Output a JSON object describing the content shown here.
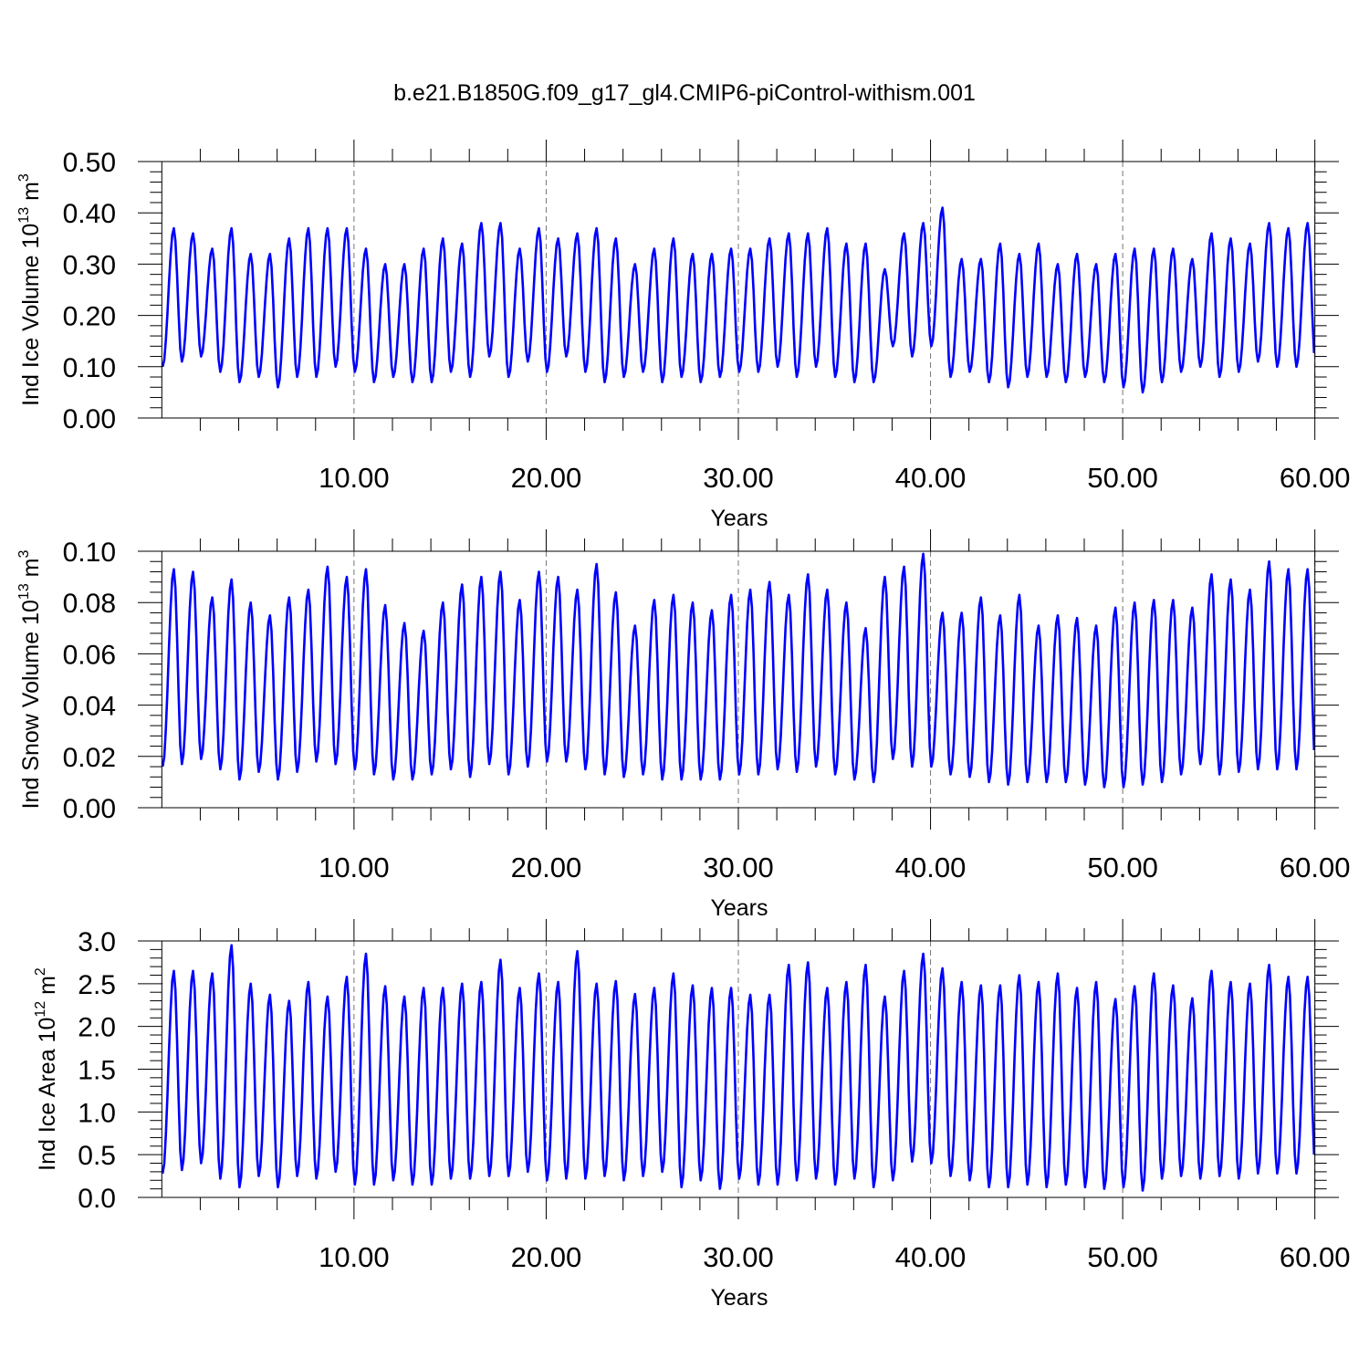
{
  "title": "b.e21.B1850G.f09_g17_gl4.CMIP6-piControl-withism.001",
  "colors": {
    "series": "#0000ff",
    "axes": "#000000",
    "grid": "#777777"
  },
  "chart_data": [
    {
      "type": "line",
      "xlabel": "Years",
      "ylabel": "Ind Ice Volume 10",
      "ylabel_sup": "13",
      "ylabel_unit": " m",
      "ylabel_unit_sup": "3",
      "xlim": [
        0,
        60
      ],
      "ylim": [
        0,
        0.5
      ],
      "xticks": [
        10,
        20,
        30,
        40,
        50,
        60
      ],
      "xtick_labels": [
        "10.00",
        "20.00",
        "30.00",
        "40.00",
        "50.00",
        "60.00"
      ],
      "yticks": [
        0,
        0.1,
        0.2,
        0.3,
        0.4,
        0.5
      ],
      "ytick_labels": [
        "0.00",
        "0.10",
        "0.20",
        "0.30",
        "0.40",
        "0.50"
      ],
      "grid": "dashed vertical at major x ticks",
      "series": [
        {
          "x_start": 0.042,
          "dx": 0.08333,
          "peaks": [
            0.37,
            0.36,
            0.33,
            0.37,
            0.32,
            0.32,
            0.35,
            0.37,
            0.37,
            0.37,
            0.33,
            0.3,
            0.3,
            0.33,
            0.35,
            0.34,
            0.38,
            0.38,
            0.33,
            0.37,
            0.35,
            0.36,
            0.37,
            0.35,
            0.3,
            0.33,
            0.35,
            0.32,
            0.32,
            0.33,
            0.33,
            0.35,
            0.36,
            0.36,
            0.37,
            0.34,
            0.34,
            0.29,
            0.36,
            0.38,
            0.41,
            0.31,
            0.31,
            0.34,
            0.32,
            0.34,
            0.3,
            0.32,
            0.3,
            0.32,
            0.33,
            0.33,
            0.33,
            0.31,
            0.36,
            0.35,
            0.34,
            0.38,
            0.37,
            0.38
          ],
          "troughs": [
            0.1,
            0.11,
            0.12,
            0.09,
            0.07,
            0.08,
            0.06,
            0.08,
            0.08,
            0.1,
            0.09,
            0.07,
            0.08,
            0.07,
            0.07,
            0.09,
            0.08,
            0.12,
            0.08,
            0.11,
            0.09,
            0.12,
            0.09,
            0.07,
            0.08,
            0.09,
            0.07,
            0.08,
            0.07,
            0.08,
            0.09,
            0.09,
            0.1,
            0.08,
            0.1,
            0.08,
            0.07,
            0.07,
            0.14,
            0.12,
            0.14,
            0.08,
            0.09,
            0.07,
            0.06,
            0.08,
            0.08,
            0.07,
            0.08,
            0.07,
            0.06,
            0.05,
            0.07,
            0.09,
            0.1,
            0.08,
            0.09,
            0.11,
            0.1,
            0.1
          ]
        }
      ]
    },
    {
      "type": "line",
      "xlabel": "Years",
      "ylabel": "Ind Snow Volume 10",
      "ylabel_sup": "13",
      "ylabel_unit": " m",
      "ylabel_unit_sup": "3",
      "xlim": [
        0,
        60
      ],
      "ylim": [
        0,
        0.1
      ],
      "xticks": [
        10,
        20,
        30,
        40,
        50,
        60
      ],
      "xtick_labels": [
        "10.00",
        "20.00",
        "30.00",
        "40.00",
        "50.00",
        "60.00"
      ],
      "yticks": [
        0,
        0.02,
        0.04,
        0.06,
        0.08,
        0.1
      ],
      "ytick_labels": [
        "0.00",
        "0.02",
        "0.04",
        "0.06",
        "0.08",
        "0.10"
      ],
      "grid": "dashed vertical at major x ticks",
      "series": [
        {
          "x_start": 0.042,
          "dx": 0.08333,
          "peaks": [
            0.093,
            0.092,
            0.082,
            0.089,
            0.08,
            0.075,
            0.082,
            0.085,
            0.094,
            0.09,
            0.093,
            0.079,
            0.072,
            0.069,
            0.08,
            0.087,
            0.09,
            0.092,
            0.081,
            0.092,
            0.09,
            0.085,
            0.095,
            0.084,
            0.071,
            0.081,
            0.083,
            0.08,
            0.077,
            0.083,
            0.085,
            0.088,
            0.083,
            0.091,
            0.085,
            0.08,
            0.07,
            0.09,
            0.094,
            0.099,
            0.076,
            0.076,
            0.082,
            0.075,
            0.083,
            0.071,
            0.075,
            0.074,
            0.071,
            0.078,
            0.08,
            0.081,
            0.081,
            0.078,
            0.091,
            0.089,
            0.085,
            0.096,
            0.093,
            0.093
          ],
          "troughs": [
            0.016,
            0.017,
            0.019,
            0.015,
            0.011,
            0.014,
            0.011,
            0.014,
            0.018,
            0.017,
            0.015,
            0.013,
            0.011,
            0.011,
            0.013,
            0.015,
            0.012,
            0.017,
            0.013,
            0.016,
            0.018,
            0.018,
            0.015,
            0.013,
            0.012,
            0.013,
            0.011,
            0.011,
            0.011,
            0.011,
            0.013,
            0.013,
            0.015,
            0.014,
            0.016,
            0.013,
            0.011,
            0.01,
            0.019,
            0.016,
            0.016,
            0.013,
            0.012,
            0.01,
            0.009,
            0.01,
            0.01,
            0.01,
            0.009,
            0.008,
            0.008,
            0.009,
            0.01,
            0.013,
            0.017,
            0.013,
            0.014,
            0.015,
            0.015,
            0.015
          ]
        }
      ]
    },
    {
      "type": "line",
      "xlabel": "Years",
      "ylabel": "Ind Ice Area 10",
      "ylabel_sup": "12",
      "ylabel_unit": " m",
      "ylabel_unit_sup": "2",
      "xlim": [
        0,
        60
      ],
      "ylim": [
        0,
        3.0
      ],
      "xticks": [
        10,
        20,
        30,
        40,
        50,
        60
      ],
      "xtick_labels": [
        "10.00",
        "20.00",
        "30.00",
        "40.00",
        "50.00",
        "60.00"
      ],
      "yticks": [
        0,
        0.5,
        1.0,
        1.5,
        2.0,
        2.5,
        3.0
      ],
      "ytick_labels": [
        "0.0",
        "0.5",
        "1.0",
        "1.5",
        "2.0",
        "2.5",
        "3.0"
      ],
      "grid": "dashed vertical at major x ticks",
      "series": [
        {
          "x_start": 0.042,
          "dx": 0.08333,
          "peaks": [
            2.65,
            2.65,
            2.62,
            2.95,
            2.5,
            2.37,
            2.3,
            2.52,
            2.35,
            2.58,
            2.85,
            2.47,
            2.35,
            2.45,
            2.45,
            2.5,
            2.52,
            2.78,
            2.45,
            2.62,
            2.52,
            2.88,
            2.5,
            2.53,
            2.38,
            2.45,
            2.62,
            2.48,
            2.45,
            2.45,
            2.37,
            2.37,
            2.72,
            2.75,
            2.45,
            2.52,
            2.72,
            2.35,
            2.65,
            2.85,
            2.68,
            2.52,
            2.48,
            2.48,
            2.6,
            2.52,
            2.62,
            2.45,
            2.52,
            2.32,
            2.47,
            2.62,
            2.48,
            2.33,
            2.65,
            2.52,
            2.5,
            2.72,
            2.58,
            2.58
          ],
          "troughs": [
            0.28,
            0.32,
            0.4,
            0.22,
            0.12,
            0.25,
            0.12,
            0.25,
            0.22,
            0.3,
            0.15,
            0.15,
            0.2,
            0.15,
            0.15,
            0.22,
            0.22,
            0.25,
            0.25,
            0.3,
            0.2,
            0.22,
            0.22,
            0.25,
            0.2,
            0.25,
            0.3,
            0.12,
            0.2,
            0.1,
            0.22,
            0.15,
            0.15,
            0.2,
            0.22,
            0.15,
            0.22,
            0.12,
            0.2,
            0.42,
            0.4,
            0.25,
            0.2,
            0.12,
            0.12,
            0.15,
            0.12,
            0.15,
            0.12,
            0.1,
            0.12,
            0.08,
            0.22,
            0.25,
            0.22,
            0.25,
            0.22,
            0.28,
            0.28,
            0.28
          ]
        }
      ]
    }
  ]
}
